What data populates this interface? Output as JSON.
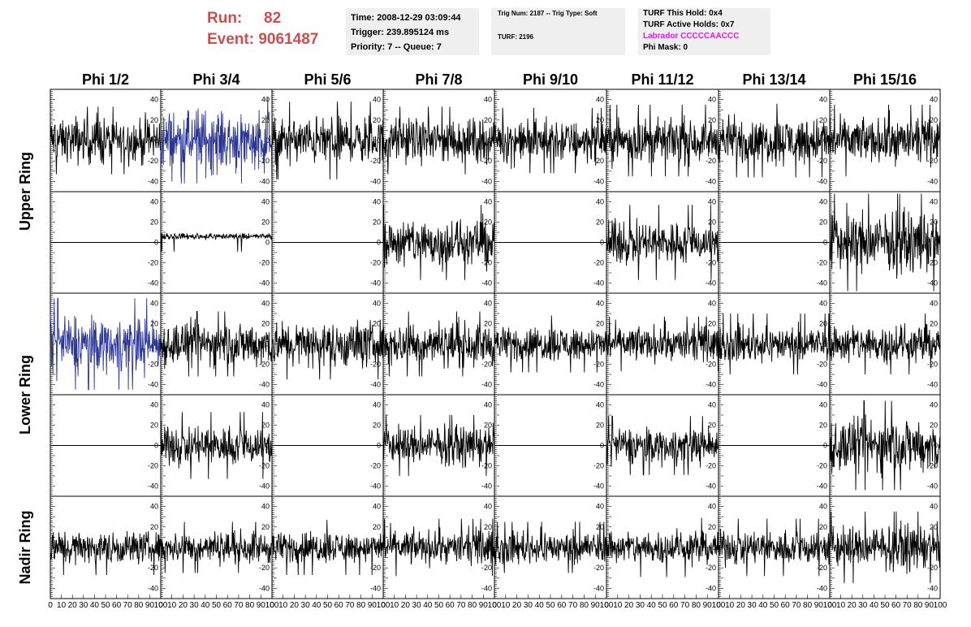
{
  "header": {
    "run_label": "Run:",
    "run_value": "82",
    "event_label": "Event:",
    "event_value": "9061487",
    "time": "Time: 2008-12-29 03:09:44",
    "trigger": "Trigger: 239.895124 ms",
    "priority": "Priority: 7 -- Queue: 7",
    "trig_num": "Trig Num: 2187 -- Trig Type: Soft",
    "turf": "TURF: 2196",
    "turf_hold": "TURF This Hold: 0x4",
    "turf_active": "TURF Active Holds: 0x7",
    "labrador": "Labrador CCCCCAACCC",
    "phi_mask": "Phi Mask: 0"
  },
  "colors": {
    "header_red": "#c9504f",
    "highlight_blue": "#2b3594",
    "labrador_magenta": "#e020e0",
    "info_bg": "#efefef"
  },
  "chart_data": {
    "type": "line",
    "columns": [
      "Phi 1/2",
      "Phi 3/4",
      "Phi 5/6",
      "Phi 7/8",
      "Phi 9/10",
      "Phi 11/12",
      "Phi 13/14",
      "Phi 15/16"
    ],
    "rows": [
      "Upper Ring",
      "Upper Ring",
      "Lower Ring",
      "Lower Ring",
      "Nadir Ring"
    ],
    "ring_labels": [
      "Upper Ring",
      "Lower Ring",
      "Nadir Ring"
    ],
    "y_ticks": [
      "40",
      "20",
      "0",
      "-20",
      "-40"
    ],
    "ylim": [
      -50,
      50
    ],
    "x_ticks": [
      "0",
      "10",
      "20",
      "30",
      "40",
      "50",
      "60",
      "70",
      "80",
      "90",
      "100"
    ],
    "xlim": [
      0,
      100
    ],
    "panels": [
      [
        {
          "amp": 15,
          "peak": 33
        },
        {
          "amp": 20,
          "peak": 42,
          "color": "blue"
        },
        {
          "amp": 15,
          "peak": 38
        },
        {
          "amp": 14,
          "peak": 33
        },
        {
          "amp": 14,
          "peak": 32
        },
        {
          "amp": 14,
          "peak": 35
        },
        {
          "amp": 15,
          "peak": 36
        },
        {
          "amp": 14,
          "peak": 35
        }
      ],
      [
        {
          "amp": 0,
          "peak": 0
        },
        {
          "amp": 2,
          "peak": 9,
          "offset": 6
        },
        {
          "amp": 0,
          "peak": 0
        },
        {
          "amp": 16,
          "peak": 37
        },
        {
          "amp": 0,
          "peak": 0
        },
        {
          "amp": 14,
          "peak": 37
        },
        {
          "amp": 0,
          "peak": 0
        },
        {
          "amp": 20,
          "peak": 48
        }
      ],
      [
        {
          "amp": 18,
          "peak": 45,
          "color": "blue"
        },
        {
          "amp": 14,
          "peak": 32
        },
        {
          "amp": 15,
          "peak": 35
        },
        {
          "amp": 14,
          "peak": 32
        },
        {
          "amp": 11,
          "peak": 28
        },
        {
          "amp": 11,
          "peak": 27
        },
        {
          "amp": 12,
          "peak": 30
        },
        {
          "amp": 13,
          "peak": 30
        }
      ],
      [
        {
          "amp": 0,
          "peak": 0
        },
        {
          "amp": 13,
          "peak": 33
        },
        {
          "amp": 0,
          "peak": 0
        },
        {
          "amp": 13,
          "peak": 30
        },
        {
          "amp": 0,
          "peak": 0
        },
        {
          "amp": 12,
          "peak": 29
        },
        {
          "amp": 0,
          "peak": 0
        },
        {
          "amp": 18,
          "peak": 44
        }
      ],
      [
        {
          "amp": 11,
          "peak": 27
        },
        {
          "amp": 10,
          "peak": 25
        },
        {
          "amp": 10,
          "peak": 27
        },
        {
          "amp": 11,
          "peak": 28
        },
        {
          "amp": 11,
          "peak": 25
        },
        {
          "amp": 11,
          "peak": 29
        },
        {
          "amp": 11,
          "peak": 28
        },
        {
          "amp": 14,
          "peak": 35
        }
      ]
    ]
  }
}
